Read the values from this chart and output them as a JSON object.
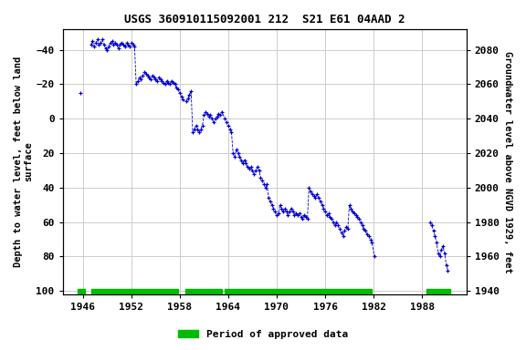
{
  "title": "USGS 360910115092001 212  S21 E61 04AAD 2",
  "ylabel_left": "Depth to water level, feet below land\nsurface",
  "ylabel_right": "Groundwater level above NGVD 1929, feet",
  "ylim_left": [
    102,
    -52
  ],
  "ylim_right": [
    1938,
    2092
  ],
  "xlim": [
    1943.5,
    1993.5
  ],
  "xticks": [
    1946,
    1952,
    1958,
    1964,
    1970,
    1976,
    1982,
    1988
  ],
  "yticks_left": [
    -40,
    -20,
    0,
    20,
    40,
    60,
    80,
    100
  ],
  "yticks_right": [
    1940,
    1960,
    1980,
    2000,
    2020,
    2040,
    2060,
    2080
  ],
  "data_color": "#0000cc",
  "bg_color": "#ffffff",
  "plot_bg_color": "#ffffff",
  "grid_color": "#cccccc",
  "approved_bar_color": "#00bb00",
  "approved_segments": [
    [
      1945.3,
      1946.3
    ],
    [
      1947.0,
      1957.8
    ],
    [
      1958.7,
      1963.2
    ],
    [
      1963.5,
      1981.8
    ],
    [
      1988.5,
      1991.5
    ]
  ],
  "legend_label": "Period of approved data",
  "title_fontsize": 9,
  "axis_fontsize": 7.5,
  "tick_fontsize": 8,
  "data_points": [
    [
      1945.7,
      -15
    ],
    [
      1947.0,
      -43
    ],
    [
      1947.2,
      -45
    ],
    [
      1947.4,
      -42
    ],
    [
      1947.6,
      -44
    ],
    [
      1947.8,
      -46
    ],
    [
      1948.0,
      -43
    ],
    [
      1948.2,
      -44
    ],
    [
      1948.4,
      -46
    ],
    [
      1948.6,
      -43
    ],
    [
      1948.8,
      -41
    ],
    [
      1949.0,
      -40
    ],
    [
      1949.2,
      -42
    ],
    [
      1949.4,
      -44
    ],
    [
      1949.6,
      -45
    ],
    [
      1949.8,
      -43
    ],
    [
      1950.0,
      -44
    ],
    [
      1950.2,
      -43
    ],
    [
      1950.4,
      -41
    ],
    [
      1950.6,
      -43
    ],
    [
      1950.8,
      -44
    ],
    [
      1951.0,
      -43
    ],
    [
      1951.2,
      -42
    ],
    [
      1951.4,
      -44
    ],
    [
      1951.6,
      -43
    ],
    [
      1951.8,
      -42
    ],
    [
      1952.0,
      -44
    ],
    [
      1952.2,
      -43
    ],
    [
      1952.4,
      -42
    ],
    [
      1952.6,
      -20
    ],
    [
      1952.8,
      -22
    ],
    [
      1953.0,
      -24
    ],
    [
      1953.2,
      -23
    ],
    [
      1953.4,
      -25
    ],
    [
      1953.6,
      -27
    ],
    [
      1953.8,
      -26
    ],
    [
      1954.0,
      -25
    ],
    [
      1954.2,
      -24
    ],
    [
      1954.4,
      -23
    ],
    [
      1954.6,
      -25
    ],
    [
      1954.8,
      -24
    ],
    [
      1955.0,
      -23
    ],
    [
      1955.2,
      -22
    ],
    [
      1955.4,
      -24
    ],
    [
      1955.6,
      -23
    ],
    [
      1955.8,
      -22
    ],
    [
      1956.0,
      -21
    ],
    [
      1956.2,
      -20
    ],
    [
      1956.4,
      -22
    ],
    [
      1956.6,
      -21
    ],
    [
      1956.8,
      -20
    ],
    [
      1957.0,
      -22
    ],
    [
      1957.2,
      -21
    ],
    [
      1957.4,
      -20
    ],
    [
      1957.6,
      -18
    ],
    [
      1957.8,
      -17
    ],
    [
      1958.0,
      -15
    ],
    [
      1958.2,
      -13
    ],
    [
      1958.4,
      -11
    ],
    [
      1958.8,
      -10
    ],
    [
      1959.0,
      -12
    ],
    [
      1959.2,
      -14
    ],
    [
      1959.4,
      -16
    ],
    [
      1959.6,
      8
    ],
    [
      1959.8,
      6
    ],
    [
      1960.0,
      4
    ],
    [
      1960.2,
      6
    ],
    [
      1960.4,
      8
    ],
    [
      1960.6,
      6
    ],
    [
      1960.8,
      4
    ],
    [
      1961.0,
      -2
    ],
    [
      1961.2,
      -4
    ],
    [
      1961.4,
      -3
    ],
    [
      1961.6,
      -1
    ],
    [
      1961.8,
      -2
    ],
    [
      1962.0,
      0
    ],
    [
      1962.2,
      2
    ],
    [
      1962.4,
      0
    ],
    [
      1962.6,
      -1
    ],
    [
      1962.8,
      -3
    ],
    [
      1963.0,
      -2
    ],
    [
      1963.2,
      -4
    ],
    [
      1963.6,
      0
    ],
    [
      1963.8,
      2
    ],
    [
      1964.0,
      4
    ],
    [
      1964.2,
      6
    ],
    [
      1964.4,
      8
    ],
    [
      1964.6,
      20
    ],
    [
      1964.8,
      22
    ],
    [
      1965.0,
      18
    ],
    [
      1965.2,
      20
    ],
    [
      1965.4,
      22
    ],
    [
      1965.6,
      24
    ],
    [
      1965.8,
      26
    ],
    [
      1966.0,
      24
    ],
    [
      1966.2,
      26
    ],
    [
      1966.4,
      28
    ],
    [
      1966.6,
      29
    ],
    [
      1966.8,
      28
    ],
    [
      1967.0,
      30
    ],
    [
      1967.2,
      32
    ],
    [
      1967.4,
      30
    ],
    [
      1967.6,
      28
    ],
    [
      1967.8,
      30
    ],
    [
      1968.0,
      34
    ],
    [
      1968.2,
      36
    ],
    [
      1968.4,
      38
    ],
    [
      1968.6,
      40
    ],
    [
      1968.8,
      38
    ],
    [
      1969.0,
      46
    ],
    [
      1969.2,
      48
    ],
    [
      1969.4,
      50
    ],
    [
      1969.6,
      52
    ],
    [
      1969.8,
      54
    ],
    [
      1970.0,
      56
    ],
    [
      1970.2,
      55
    ],
    [
      1970.4,
      50
    ],
    [
      1970.6,
      52
    ],
    [
      1970.8,
      54
    ],
    [
      1971.0,
      52
    ],
    [
      1971.2,
      54
    ],
    [
      1971.4,
      56
    ],
    [
      1971.6,
      54
    ],
    [
      1971.8,
      52
    ],
    [
      1972.0,
      54
    ],
    [
      1972.2,
      56
    ],
    [
      1972.4,
      55
    ],
    [
      1972.6,
      56
    ],
    [
      1972.8,
      55
    ],
    [
      1973.0,
      57
    ],
    [
      1973.2,
      58
    ],
    [
      1973.4,
      56
    ],
    [
      1973.6,
      57
    ],
    [
      1973.8,
      58
    ],
    [
      1974.0,
      40
    ],
    [
      1974.2,
      42
    ],
    [
      1974.4,
      44
    ],
    [
      1974.6,
      45
    ],
    [
      1974.8,
      46
    ],
    [
      1975.0,
      44
    ],
    [
      1975.2,
      46
    ],
    [
      1975.4,
      48
    ],
    [
      1975.6,
      50
    ],
    [
      1975.8,
      52
    ],
    [
      1976.0,
      54
    ],
    [
      1976.2,
      56
    ],
    [
      1976.4,
      55
    ],
    [
      1976.6,
      57
    ],
    [
      1976.8,
      58
    ],
    [
      1977.0,
      60
    ],
    [
      1977.2,
      62
    ],
    [
      1977.4,
      60
    ],
    [
      1977.6,
      62
    ],
    [
      1977.8,
      64
    ],
    [
      1978.0,
      66
    ],
    [
      1978.2,
      68
    ],
    [
      1978.4,
      65
    ],
    [
      1978.6,
      63
    ],
    [
      1978.8,
      64
    ],
    [
      1979.0,
      50
    ],
    [
      1979.2,
      52
    ],
    [
      1979.4,
      54
    ],
    [
      1979.6,
      55
    ],
    [
      1979.8,
      56
    ],
    [
      1980.0,
      57
    ],
    [
      1980.2,
      58
    ],
    [
      1980.4,
      60
    ],
    [
      1980.6,
      62
    ],
    [
      1980.8,
      64
    ],
    [
      1981.0,
      65
    ],
    [
      1981.2,
      67
    ],
    [
      1981.4,
      68
    ],
    [
      1981.6,
      70
    ],
    [
      1981.8,
      72
    ],
    [
      1982.1,
      80
    ],
    [
      1989.0,
      60
    ],
    [
      1989.2,
      62
    ],
    [
      1989.4,
      65
    ],
    [
      1989.6,
      68
    ],
    [
      1989.8,
      72
    ],
    [
      1990.0,
      78
    ],
    [
      1990.2,
      80
    ],
    [
      1990.4,
      76
    ],
    [
      1990.6,
      74
    ],
    [
      1990.8,
      78
    ],
    [
      1991.0,
      85
    ],
    [
      1991.2,
      88
    ]
  ]
}
